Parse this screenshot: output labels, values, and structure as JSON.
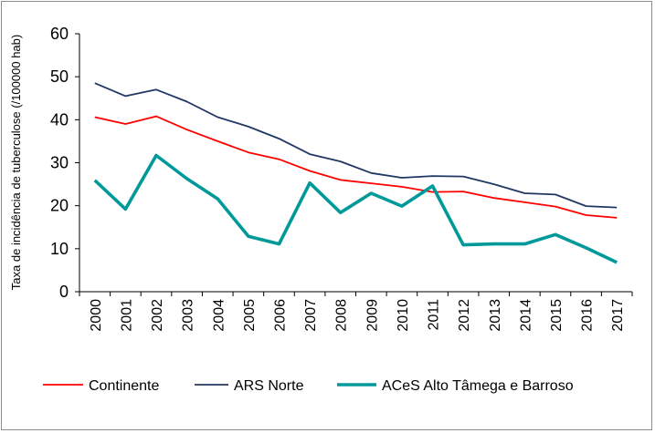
{
  "chart_data": {
    "type": "line",
    "ylabel": "Taxa de incidência de tuberculose (/100000 hab)",
    "xlabel": "",
    "title": "",
    "ylim": [
      0,
      60
    ],
    "yticks": [
      0,
      10,
      20,
      30,
      40,
      50,
      60
    ],
    "grid": false,
    "legend_position": "bottom",
    "categories": [
      "2000",
      "2001",
      "2002",
      "2003",
      "2004",
      "2005",
      "2006",
      "2007",
      "2008",
      "2009",
      "2010",
      "2011",
      "2012",
      "2013",
      "2014",
      "2015",
      "2016",
      "2017"
    ],
    "series": [
      {
        "name": "Continente",
        "color": "#ff0000",
        "values": [
          40.6,
          39.0,
          40.8,
          37.7,
          35.0,
          32.4,
          30.8,
          28.1,
          26.0,
          25.2,
          24.4,
          23.2,
          23.3,
          21.8,
          20.8,
          19.8,
          17.8,
          17.2
        ]
      },
      {
        "name": "ARS Norte",
        "color": "#1f3864",
        "values": [
          48.5,
          45.5,
          47.0,
          44.2,
          40.6,
          38.4,
          35.6,
          32.0,
          30.3,
          27.6,
          26.5,
          26.9,
          26.8,
          25.0,
          22.9,
          22.6,
          19.9,
          19.6
        ]
      },
      {
        "name": "ACeS Alto Tâmega e Barroso",
        "color": "#009999",
        "values": [
          25.9,
          19.2,
          31.7,
          26.3,
          21.6,
          12.9,
          11.1,
          25.3,
          18.4,
          22.9,
          19.9,
          24.6,
          10.9,
          11.1,
          11.1,
          13.3,
          10.2,
          6.8
        ]
      }
    ]
  }
}
